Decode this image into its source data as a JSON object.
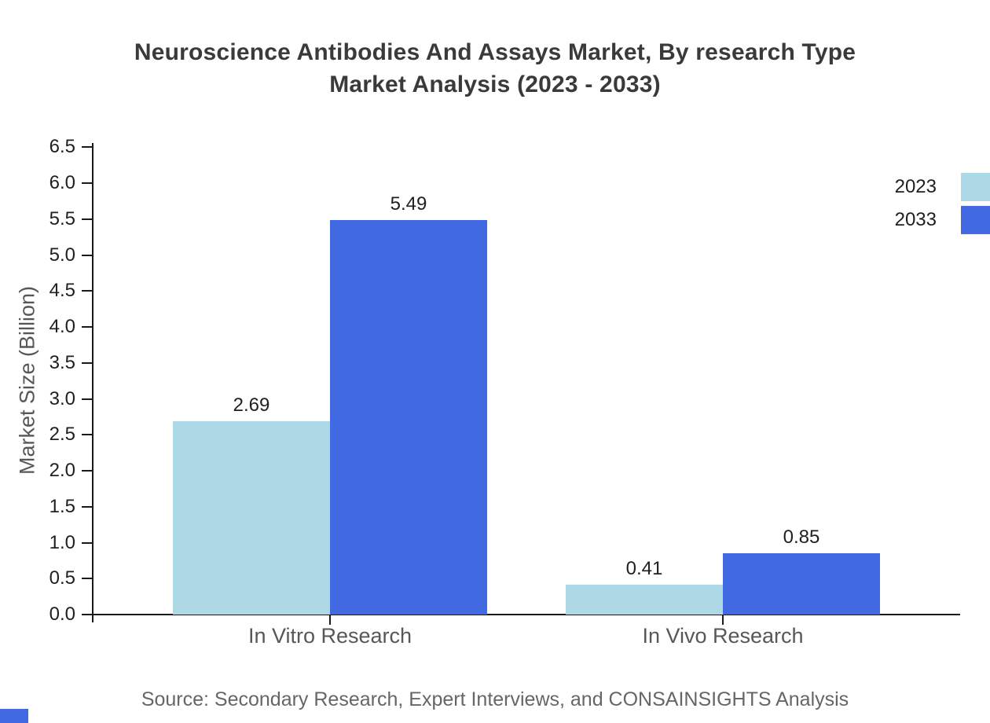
{
  "title": {
    "line1": "Neuroscience Antibodies And Assays Market, By research Type",
    "line2": "Market Analysis (2023 - 2033)"
  },
  "chart_data": {
    "type": "bar",
    "categories": [
      "In Vitro Research",
      "In Vivo Research"
    ],
    "series": [
      {
        "name": "2023",
        "color": "#add8e6",
        "values": [
          2.69,
          0.41
        ]
      },
      {
        "name": "2033",
        "color": "#4169e1",
        "values": [
          5.49,
          0.85
        ]
      }
    ],
    "title": "Neuroscience Antibodies And Assays Market, By research Type Market Analysis (2023 - 2033)",
    "xlabel": "",
    "ylabel": "Market Size (Billion)",
    "ylim": [
      0,
      6.5
    ],
    "ytick_step": 0.5,
    "ytick_labels": [
      "0.0",
      "0.5",
      "1.0",
      "1.5",
      "2.0",
      "2.5",
      "3.0",
      "3.5",
      "4.0",
      "4.5",
      "5.0",
      "5.5",
      "6.0",
      "6.5"
    ],
    "value_labels": [
      "2.69",
      "5.49",
      "0.41",
      "0.85"
    ],
    "grid": false,
    "legend_position": "top-right"
  },
  "source_note": "Source: Secondary Research, Expert Interviews, and CONSAINSIGHTS Analysis",
  "colors": {
    "series_2023": "#add8e6",
    "series_2033": "#4169e1",
    "title_text": "#3a3a3a",
    "tick_text": "#1f1f1f",
    "muted_text": "#575757",
    "axis": "#1a1a1a",
    "brand_mark": "#4169e1"
  }
}
